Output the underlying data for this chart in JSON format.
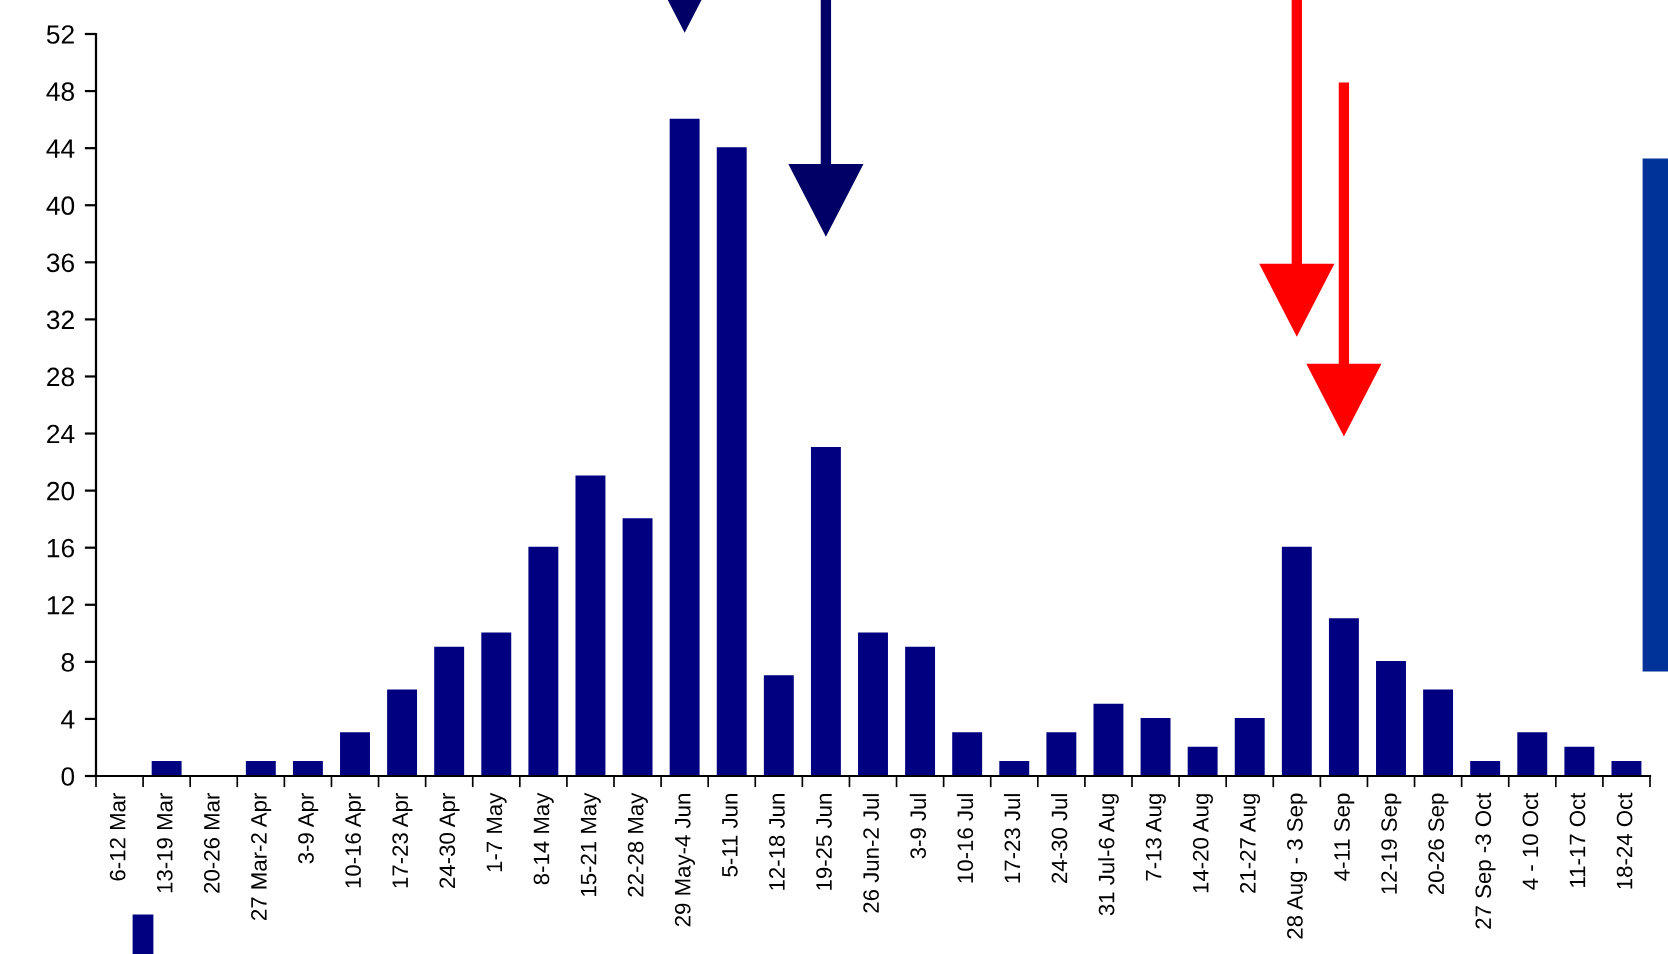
{
  "chart_data": {
    "type": "bar",
    "categories": [
      "6-12 Mar",
      "13-19 Mar",
      "20-26 Mar",
      "27 Mar-2 Apr",
      "3-9 Apr",
      "10-16 Apr",
      "17-23 Apr",
      "24-30 Apr",
      "1-7 May",
      "8-14 May",
      "15-21 May",
      "22-28 May",
      "29 May-4 Jun",
      "5-11 Jun",
      "12-18 Jun",
      "19-25 Jun",
      "26 Jun-2 Jul",
      "3-9 Jul",
      "10-16 Jul",
      "17-23 Jul",
      "24-30 Jul",
      "31 Jul-6 Aug",
      "7-13 Aug",
      "14-20 Aug",
      "21-27 Aug",
      "28 Aug - 3 Sep",
      "4-11 Sep",
      "12-19 Sep",
      "20-26 Sep",
      "27 Sep -3 Oct",
      "4 - 10 Oct",
      "11-17 Oct",
      "18-24 Oct"
    ],
    "values": [
      0,
      1,
      0,
      1,
      1,
      3,
      6,
      9,
      10,
      16,
      21,
      18,
      46,
      44,
      7,
      23,
      10,
      9,
      3,
      1,
      3,
      5,
      4,
      2,
      4,
      16,
      11,
      8,
      6,
      1,
      3,
      2,
      1
    ],
    "color": "#000080",
    "ylim": [
      0,
      52
    ],
    "yticks": [
      0,
      4,
      8,
      12,
      16,
      20,
      24,
      28,
      32,
      36,
      40,
      44,
      48,
      52
    ],
    "grid": false,
    "legend": false
  }
}
